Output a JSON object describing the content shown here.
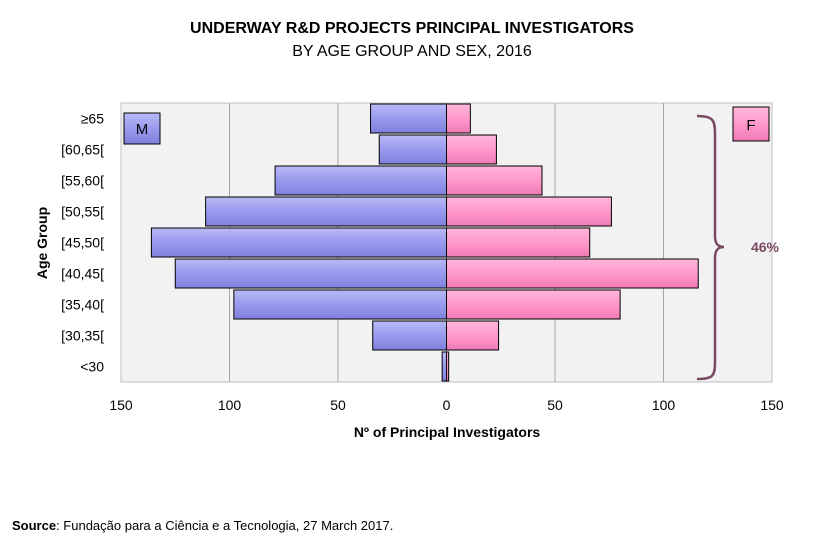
{
  "chart_data": {
    "type": "bar",
    "orientation": "horizontal-population-pyramid",
    "title": "UNDERWAY R&D PROJECTS PRINCIPAL INVESTIGATORS",
    "subtitle": "BY AGE GROUP AND SEX, 2016",
    "xlabel": "Nº of Principal Investigators",
    "ylabel": "Age Group",
    "categories": [
      "≥65",
      "[60,65[",
      "[55,60[",
      "[50,55[",
      "[45,50[",
      "[40,45[",
      "[35,40[",
      "[30,35[",
      "<30"
    ],
    "x_ticks": [
      "150",
      "100",
      "50",
      "0",
      "50",
      "100",
      "150"
    ],
    "xlim": [
      -150,
      150
    ],
    "grid": "vertical",
    "series": [
      {
        "name": "M",
        "color": "#9999ee",
        "values": [
          35,
          31,
          79,
          111,
          136,
          125,
          98,
          34,
          2
        ]
      },
      {
        "name": "F",
        "color": "#ff99cc",
        "values": [
          11,
          23,
          44,
          76,
          66,
          116,
          80,
          24,
          1
        ]
      }
    ],
    "annotation": {
      "text": "46%",
      "color": "#7a4a63"
    }
  },
  "source": {
    "label": "Source",
    "text": ": Fundação para a Ciência e a Tecnologia, 27 March 2017."
  }
}
